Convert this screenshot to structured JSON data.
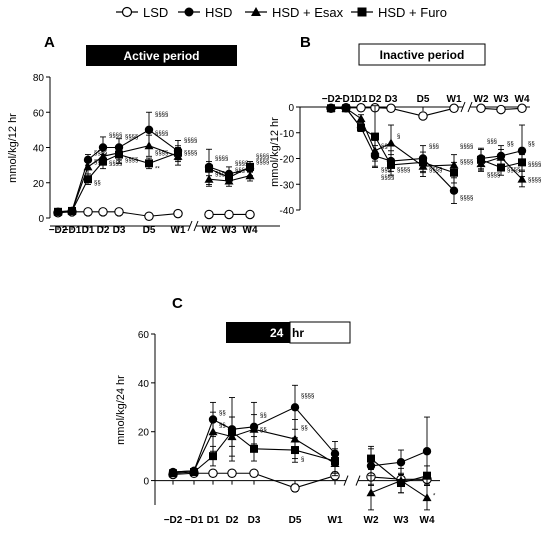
{
  "legend": {
    "items": [
      {
        "label": "LSD",
        "marker": "open-circle"
      },
      {
        "label": "HSD",
        "marker": "filled-circle"
      },
      {
        "label": "HSD + Esax",
        "marker": "filled-triangle"
      },
      {
        "label": "HSD + Furo",
        "marker": "filled-square"
      }
    ]
  },
  "colors": {
    "line": "#000000",
    "banner_dark": "#000000",
    "banner_light": "#ffffff"
  },
  "chart_data": [
    {
      "panel": "A",
      "banner": "Active period",
      "type": "line",
      "ylabel": "mmol/kg/12 hr",
      "ylim": [
        0,
        80
      ],
      "yticks": [
        0,
        20,
        40,
        60,
        80
      ],
      "categories": [
        "−D2",
        "−D1",
        "D1",
        "D2",
        "D3",
        "D5",
        "W1",
        "W2",
        "W3",
        "W4"
      ],
      "axis_break_after": "W1",
      "series": [
        {
          "name": "LSD",
          "marker": "open-circle",
          "values": [
            3,
            3.5,
            3.5,
            3.5,
            3.5,
            1,
            2.5,
            2,
            2,
            2
          ],
          "errors": [
            0.5,
            0.5,
            0.5,
            0.5,
            0.5,
            0.5,
            0.5,
            0.5,
            0.5,
            0.5
          ]
        },
        {
          "name": "HSD",
          "marker": "filled-circle",
          "values": [
            3.5,
            4,
            33,
            40,
            40,
            50,
            38,
            29,
            25,
            28
          ],
          "errors": [
            0.5,
            0.5,
            3,
            6,
            5,
            10,
            6,
            10,
            4,
            4
          ]
        },
        {
          "name": "HSD + Esax",
          "marker": "filled-triangle",
          "values": [
            3.5,
            4,
            29,
            35,
            37,
            41,
            35,
            22,
            21,
            24
          ],
          "errors": [
            0.5,
            0.5,
            4,
            5,
            4,
            6,
            5,
            4,
            3,
            3
          ]
        },
        {
          "name": "HSD + Furo",
          "marker": "filled-square",
          "values": [
            3.5,
            4,
            22,
            32,
            36,
            31,
            37,
            28,
            23,
            29
          ],
          "errors": [
            0.5,
            0.5,
            3,
            4,
            5,
            3,
            4,
            4,
            3,
            3
          ]
        }
      ],
      "annotations": [
        {
          "text": "§§§§",
          "category": "D1",
          "value": 36
        },
        {
          "text": "§§§§",
          "category": "D1",
          "value": 31
        },
        {
          "text": "§§",
          "category": "D1",
          "value": 19
        },
        {
          "text": "§§§§",
          "category": "D2",
          "value": 46
        },
        {
          "text": "§§§§",
          "category": "D2",
          "value": 30
        },
        {
          "text": "§§§§",
          "category": "D3",
          "value": 45
        },
        {
          "text": "§§§§",
          "category": "D3",
          "value": 32
        },
        {
          "text": "§§§§",
          "category": "D5",
          "value": 58
        },
        {
          "text": "§§§§",
          "category": "D5",
          "value": 47
        },
        {
          "text": "§§§§",
          "category": "D5",
          "value": 36
        },
        {
          "text": "**",
          "category": "D5",
          "value": 27
        },
        {
          "text": "§§§§",
          "category": "W1",
          "value": 43
        },
        {
          "text": "§§§§",
          "category": "W1",
          "value": 36
        },
        {
          "text": "§§§§",
          "category": "W2",
          "value": 33
        },
        {
          "text": "§§§",
          "category": "W2",
          "value": 24
        },
        {
          "text": "§§§§",
          "category": "W3",
          "value": 30
        },
        {
          "text": "§§§",
          "category": "W3",
          "value": 26
        },
        {
          "text": "§§§§",
          "category": "W4",
          "value": 34
        },
        {
          "text": "§§§§",
          "category": "W4",
          "value": 31
        }
      ]
    },
    {
      "panel": "B",
      "banner": "Inactive period",
      "type": "line",
      "ylabel": "mmol/kg/12 hr",
      "ylim": [
        -40,
        0
      ],
      "yticks": [
        0,
        -10,
        -20,
        -30,
        -40
      ],
      "xaxis_at_top": true,
      "categories": [
        "−D2",
        "−D1",
        "D1",
        "D2",
        "D3",
        "D5",
        "W1",
        "W2",
        "W3",
        "W4"
      ],
      "axis_break_after": "W1",
      "series": [
        {
          "name": "LSD",
          "marker": "open-circle",
          "values": [
            -0.5,
            -0.3,
            -0.3,
            -0.3,
            -0.5,
            -3.5,
            -0.5,
            -0.5,
            -1,
            -0.5
          ],
          "errors": [
            0.3,
            0.3,
            0.3,
            0.3,
            0.3,
            0.5,
            0.3,
            0.3,
            0.3,
            0.3
          ]
        },
        {
          "name": "HSD",
          "marker": "filled-circle",
          "values": [
            -0.5,
            -0.5,
            -8,
            -19,
            -21,
            -20,
            -32.5,
            -20,
            -19,
            -17
          ],
          "errors": [
            0.3,
            0.3,
            1.5,
            4,
            4,
            5,
            5,
            4,
            4,
            10
          ]
        },
        {
          "name": "HSD + Esax",
          "marker": "filled-triangle",
          "values": [
            -0.5,
            -0.5,
            -4.5,
            -17,
            -14,
            -23,
            -22.5,
            -22,
            -19.5,
            -28
          ],
          "errors": [
            0.3,
            0.3,
            1.5,
            4,
            7,
            4,
            4,
            3,
            3,
            3
          ]
        },
        {
          "name": "HSD + Furo",
          "marker": "filled-square",
          "values": [
            -0.5,
            -0.5,
            -8,
            -11.5,
            -22.5,
            -21.5,
            -25.5,
            -20.5,
            -23.5,
            -21.5
          ],
          "errors": [
            0.3,
            0.3,
            1.5,
            12,
            4,
            4,
            4,
            4,
            3,
            3
          ]
        }
      ],
      "annotations": [
        {
          "text": "§§",
          "category": "D2",
          "value": -16
        },
        {
          "text": "§§§",
          "category": "D2",
          "value": -25
        },
        {
          "text": "§§§§",
          "category": "D2",
          "value": -28
        },
        {
          "text": "§",
          "category": "D3",
          "value": -12
        },
        {
          "text": "§§§§",
          "category": "D3",
          "value": -25
        },
        {
          "text": "§§§",
          "category": "D5",
          "value": -16
        },
        {
          "text": "§§§§",
          "category": "D5",
          "value": -25
        },
        {
          "text": "§§§§",
          "category": "W1",
          "value": -16
        },
        {
          "text": "§§§§",
          "category": "W1",
          "value": -22
        },
        {
          "text": "§§§§",
          "category": "W1",
          "value": -36
        },
        {
          "text": "§§§",
          "category": "W2",
          "value": -14
        },
        {
          "text": "§§§§",
          "category": "W2",
          "value": -27
        },
        {
          "text": "§§",
          "category": "W3",
          "value": -15
        },
        {
          "text": "§§§§",
          "category": "W3",
          "value": -25
        },
        {
          "text": "§§",
          "category": "W4",
          "value": -15
        },
        {
          "text": "§§§§",
          "category": "W4",
          "value": -23
        },
        {
          "text": "§§§§",
          "category": "W4",
          "value": -29
        }
      ]
    },
    {
      "panel": "C",
      "banner_dark": "24",
      "banner_light": "hr",
      "type": "line",
      "ylabel": "mmol/kg/24 hr",
      "ylim": [
        -10,
        60
      ],
      "yticks": [
        0,
        20,
        40,
        60
      ],
      "categories": [
        "−D2",
        "−D1",
        "D1",
        "D2",
        "D3",
        "D5",
        "W1",
        "W2",
        "W3",
        "W4"
      ],
      "axis_break_after": "W1",
      "series": [
        {
          "name": "LSD",
          "marker": "open-circle",
          "values": [
            2.5,
            3,
            3,
            3,
            3,
            -3,
            2,
            1.5,
            0.5,
            0.5
          ],
          "errors": [
            0.5,
            0.5,
            0.5,
            0.5,
            0.5,
            1.5,
            1.5,
            3,
            2,
            2
          ]
        },
        {
          "name": "HSD",
          "marker": "filled-circle",
          "values": [
            3.5,
            4,
            25,
            21,
            22,
            30,
            11,
            6,
            7.5,
            12
          ],
          "errors": [
            0.5,
            0.5,
            7,
            13,
            10,
            9,
            5,
            8,
            5,
            14
          ]
        },
        {
          "name": "HSD + Esax",
          "marker": "filled-triangle",
          "values": [
            3.5,
            4,
            20,
            18,
            21,
            17,
            7,
            -5,
            0,
            -7
          ],
          "errors": [
            0.5,
            0.5,
            8,
            8,
            6,
            8,
            5,
            7,
            5,
            5
          ]
        },
        {
          "name": "HSD + Furo",
          "marker": "filled-square",
          "values": [
            3,
            3.5,
            10,
            20,
            13,
            12.5,
            8,
            9,
            -1,
            2
          ],
          "errors": [
            0.5,
            0.5,
            4,
            6,
            5,
            5,
            5,
            4,
            4,
            4
          ]
        }
      ],
      "annotations": [
        {
          "text": "§§",
          "category": "D1",
          "value": 27
        },
        {
          "text": "§§",
          "category": "D1",
          "value": 22
        },
        {
          "text": "§§",
          "category": "D3",
          "value": 26
        },
        {
          "text": "§§",
          "category": "D3",
          "value": 20
        },
        {
          "text": "§§§§",
          "category": "D5",
          "value": 34
        },
        {
          "text": "§§",
          "category": "D5",
          "value": 21
        },
        {
          "text": "§",
          "category": "D5",
          "value": 8
        },
        {
          "text": "*",
          "category": "W4",
          "value": -7
        }
      ]
    }
  ]
}
